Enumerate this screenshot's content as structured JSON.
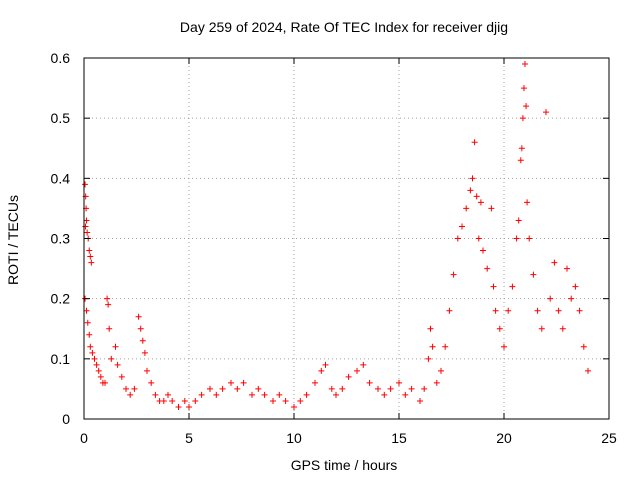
{
  "chart_data": {
    "type": "scatter",
    "title": "Day 259 of 2024, Rate Of TEC Index for receiver djig",
    "xlabel": "GPS time / hours",
    "ylabel": "ROTI / TECUs",
    "xlim": [
      0,
      25
    ],
    "ylim": [
      0,
      0.6
    ],
    "x_ticks": [
      0,
      5,
      10,
      15,
      20,
      25
    ],
    "x_tick_labels": [
      "0",
      "5",
      "10",
      "15",
      "20",
      "25"
    ],
    "y_ticks": [
      0,
      0.1,
      0.2,
      0.3,
      0.4,
      0.5,
      0.6
    ],
    "y_tick_labels": [
      "0",
      "0.1",
      "0.2",
      "0.3",
      "0.4",
      "0.5",
      "0.6"
    ],
    "grid": true,
    "marker": "+",
    "color": "#ff0000",
    "series": [
      {
        "points": [
          [
            0.05,
            0.39
          ],
          [
            0.08,
            0.37
          ],
          [
            0.1,
            0.35
          ],
          [
            0.12,
            0.33
          ],
          [
            0.15,
            0.31
          ],
          [
            0.07,
            0.32
          ],
          [
            0.2,
            0.3
          ],
          [
            0.25,
            0.28
          ],
          [
            0.3,
            0.27
          ],
          [
            0.35,
            0.26
          ],
          [
            0.05,
            0.2
          ],
          [
            0.12,
            0.18
          ],
          [
            0.18,
            0.16
          ],
          [
            0.25,
            0.14
          ],
          [
            0.3,
            0.12
          ],
          [
            0.4,
            0.11
          ],
          [
            0.5,
            0.1
          ],
          [
            0.6,
            0.09
          ],
          [
            0.7,
            0.08
          ],
          [
            0.8,
            0.07
          ],
          [
            0.9,
            0.06
          ],
          [
            1.0,
            0.06
          ],
          [
            1.1,
            0.2
          ],
          [
            1.15,
            0.19
          ],
          [
            1.2,
            0.15
          ],
          [
            1.3,
            0.1
          ],
          [
            1.5,
            0.12
          ],
          [
            1.6,
            0.09
          ],
          [
            1.8,
            0.07
          ],
          [
            2.0,
            0.05
          ],
          [
            2.2,
            0.04
          ],
          [
            2.4,
            0.05
          ],
          [
            2.6,
            0.17
          ],
          [
            2.7,
            0.15
          ],
          [
            2.8,
            0.13
          ],
          [
            2.9,
            0.11
          ],
          [
            3.0,
            0.08
          ],
          [
            3.2,
            0.06
          ],
          [
            3.4,
            0.04
          ],
          [
            3.6,
            0.03
          ],
          [
            3.8,
            0.03
          ],
          [
            4.0,
            0.04
          ],
          [
            4.2,
            0.03
          ],
          [
            4.5,
            0.02
          ],
          [
            4.8,
            0.03
          ],
          [
            5.0,
            0.02
          ],
          [
            5.3,
            0.03
          ],
          [
            5.6,
            0.04
          ],
          [
            6.0,
            0.05
          ],
          [
            6.3,
            0.04
          ],
          [
            6.6,
            0.05
          ],
          [
            7.0,
            0.06
          ],
          [
            7.3,
            0.05
          ],
          [
            7.6,
            0.06
          ],
          [
            8.0,
            0.04
          ],
          [
            8.3,
            0.05
          ],
          [
            8.6,
            0.04
          ],
          [
            9.0,
            0.03
          ],
          [
            9.3,
            0.04
          ],
          [
            9.6,
            0.03
          ],
          [
            10.0,
            0.02
          ],
          [
            10.3,
            0.03
          ],
          [
            10.6,
            0.04
          ],
          [
            11.0,
            0.06
          ],
          [
            11.3,
            0.08
          ],
          [
            11.5,
            0.09
          ],
          [
            11.8,
            0.05
          ],
          [
            12.0,
            0.04
          ],
          [
            12.3,
            0.05
          ],
          [
            12.6,
            0.07
          ],
          [
            13.0,
            0.08
          ],
          [
            13.3,
            0.09
          ],
          [
            13.6,
            0.06
          ],
          [
            14.0,
            0.05
          ],
          [
            14.3,
            0.04
          ],
          [
            14.6,
            0.05
          ],
          [
            15.0,
            0.06
          ],
          [
            15.3,
            0.04
          ],
          [
            15.6,
            0.05
          ],
          [
            16.0,
            0.03
          ],
          [
            16.2,
            0.05
          ],
          [
            16.4,
            0.1
          ],
          [
            16.5,
            0.15
          ],
          [
            16.6,
            0.12
          ],
          [
            16.8,
            0.06
          ],
          [
            17.0,
            0.08
          ],
          [
            17.2,
            0.12
          ],
          [
            17.4,
            0.18
          ],
          [
            17.6,
            0.24
          ],
          [
            17.8,
            0.3
          ],
          [
            18.0,
            0.32
          ],
          [
            18.2,
            0.35
          ],
          [
            18.4,
            0.38
          ],
          [
            18.5,
            0.4
          ],
          [
            18.6,
            0.46
          ],
          [
            18.7,
            0.37
          ],
          [
            18.8,
            0.3
          ],
          [
            18.9,
            0.36
          ],
          [
            19.0,
            0.28
          ],
          [
            19.2,
            0.25
          ],
          [
            19.4,
            0.35
          ],
          [
            19.5,
            0.22
          ],
          [
            19.6,
            0.18
          ],
          [
            19.8,
            0.15
          ],
          [
            20.0,
            0.12
          ],
          [
            20.2,
            0.18
          ],
          [
            20.4,
            0.22
          ],
          [
            20.6,
            0.3
          ],
          [
            20.7,
            0.33
          ],
          [
            20.8,
            0.43
          ],
          [
            20.85,
            0.45
          ],
          [
            20.9,
            0.5
          ],
          [
            20.95,
            0.55
          ],
          [
            21.0,
            0.59
          ],
          [
            21.05,
            0.52
          ],
          [
            21.1,
            0.36
          ],
          [
            21.2,
            0.3
          ],
          [
            21.4,
            0.24
          ],
          [
            21.6,
            0.18
          ],
          [
            21.8,
            0.15
          ],
          [
            22.0,
            0.51
          ],
          [
            22.2,
            0.2
          ],
          [
            22.4,
            0.26
          ],
          [
            22.6,
            0.18
          ],
          [
            22.8,
            0.15
          ],
          [
            23.0,
            0.25
          ],
          [
            23.2,
            0.2
          ],
          [
            23.4,
            0.22
          ],
          [
            23.6,
            0.18
          ],
          [
            23.8,
            0.12
          ],
          [
            24.0,
            0.08
          ]
        ]
      }
    ]
  }
}
